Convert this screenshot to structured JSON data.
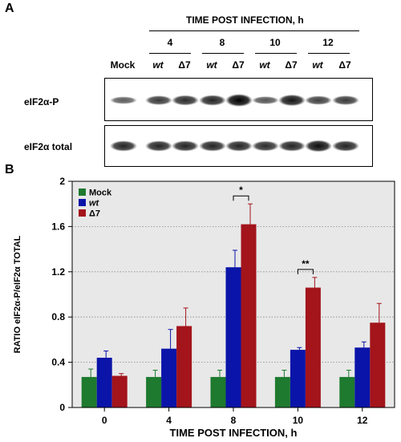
{
  "panel_a": {
    "letter": "A",
    "header": "TIME POST INFECTION, h",
    "timepoints": [
      "4",
      "8",
      "10",
      "12"
    ],
    "lanes": [
      "Mock",
      "wt",
      "Δ7",
      "wt",
      "Δ7",
      "wt",
      "Δ7",
      "wt",
      "Δ7"
    ],
    "row1_label": "eIF2α-P",
    "row2_label": "eIF2α total",
    "row1_intensity": [
      0.35,
      0.6,
      0.7,
      0.75,
      1.0,
      0.4,
      0.85,
      0.55,
      0.6
    ],
    "row2_intensity": [
      0.75,
      0.75,
      0.75,
      0.75,
      0.75,
      0.7,
      0.75,
      0.9,
      0.75
    ]
  },
  "panel_b": {
    "letter": "B"
  },
  "chart_data": {
    "type": "bar",
    "categories": [
      "0",
      "4",
      "8",
      "10",
      "12"
    ],
    "series": [
      {
        "name": "Mock",
        "color": "#1e7a2e",
        "values": [
          0.27,
          0.27,
          0.27,
          0.27,
          0.27
        ],
        "errors": [
          0.07,
          0.06,
          0.06,
          0.06,
          0.06
        ]
      },
      {
        "name": "wt",
        "color": "#0a14a8",
        "values": [
          0.44,
          0.52,
          1.24,
          0.51,
          0.53
        ],
        "errors": [
          0.06,
          0.17,
          0.15,
          0.02,
          0.05
        ]
      },
      {
        "name": "Δ7",
        "color": "#a3141b",
        "values": [
          0.28,
          0.72,
          1.62,
          1.06,
          0.75
        ],
        "errors": [
          0.02,
          0.16,
          0.18,
          0.09,
          0.17
        ]
      }
    ],
    "xlabel": "TIME POST INFECTION, h",
    "ylabel": "RATIO eIF2α-P/eIF2α TOTAL",
    "ylim": [
      0,
      2
    ],
    "yticks": [
      "0",
      "0.4",
      "0.8",
      "1.2",
      "1.6",
      "2"
    ],
    "grid": true,
    "legend": "top-left",
    "annotations": [
      {
        "category": "8",
        "text": "*"
      },
      {
        "category": "10",
        "text": "**"
      }
    ]
  }
}
